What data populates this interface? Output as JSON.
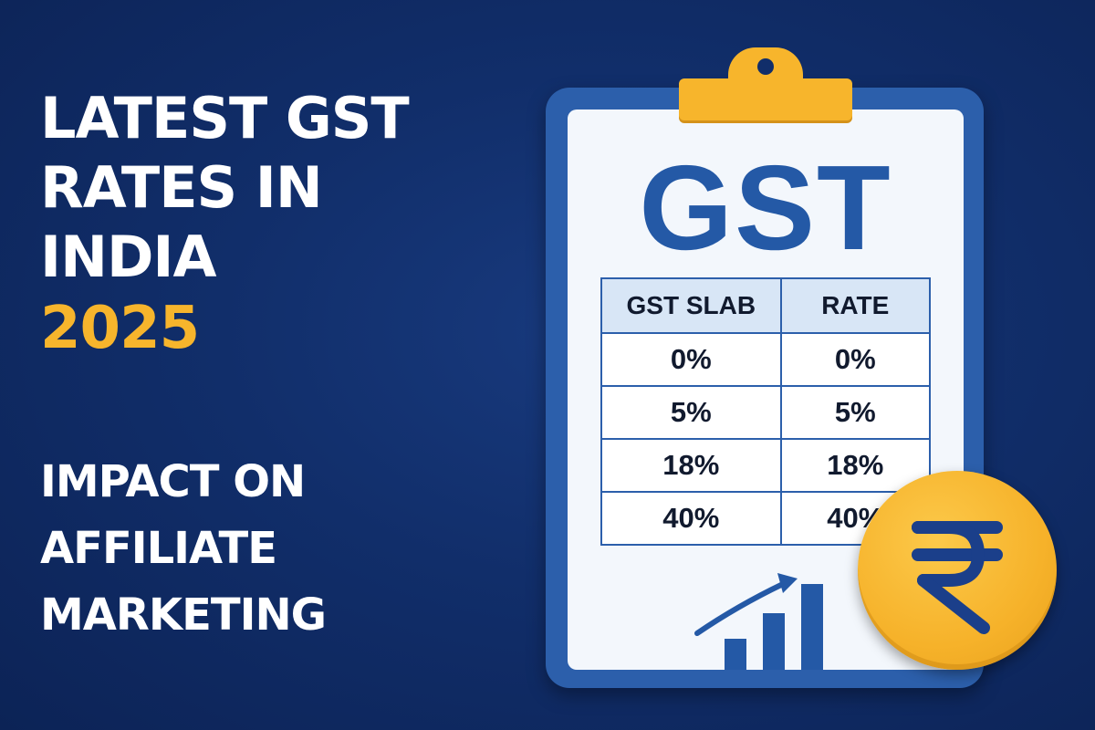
{
  "headline": {
    "line1": "LATEST GST",
    "line2": "RATES IN",
    "line3": "INDIA",
    "year": "2025"
  },
  "subhead": {
    "line1": "IMPACT ON",
    "line2": "AFFILIATE",
    "line3": "MARKETING"
  },
  "clipboard": {
    "title": "GST",
    "table": {
      "headers": [
        "GST SLAB",
        "RATE"
      ],
      "rows": [
        [
          "0%",
          "0%"
        ],
        [
          "5%",
          "5%"
        ],
        [
          "18%",
          "18%"
        ],
        [
          "40%",
          "40%"
        ]
      ]
    }
  },
  "icons": {
    "clipboard": "clipboard-icon",
    "growth": "growth-chart-icon",
    "coin": "rupee-coin-icon"
  },
  "colors": {
    "background": "#112e6a",
    "accent_yellow": "#f7b52c",
    "clipboard_blue": "#2c5fab",
    "title_blue": "#2459a6",
    "text_white": "#ffffff"
  }
}
